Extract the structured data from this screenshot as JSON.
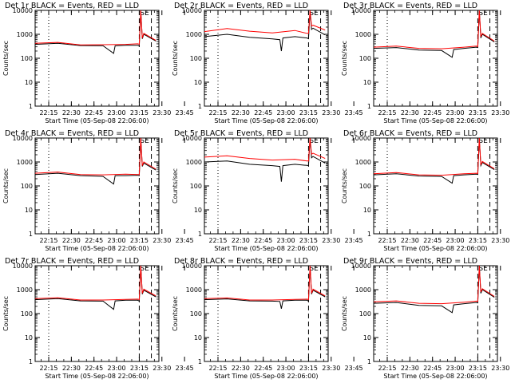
{
  "chart_data": [
    {
      "type": "line",
      "title": "Det 1r BLACK = Events, RED = LLD",
      "xlabel": "Start Time (05-Sep-08 22:06:00)",
      "ylabel": "Counts/sec",
      "yscale": "log",
      "ylim": [
        1,
        10000
      ],
      "xticks": [
        "22:15",
        "22:30",
        "22:45",
        "23:00",
        "23:15",
        "23:30",
        "23:45"
      ],
      "yticks": [
        "1",
        "10",
        "100",
        "1000",
        "10000"
      ],
      "annotation": "SE",
      "series": [
        {
          "name": "Events",
          "color": "#000000",
          "x": [
            0,
            15,
            30,
            45,
            52,
            53,
            60,
            68,
            69,
            70,
            71,
            72,
            80
          ],
          "y": [
            380,
            420,
            340,
            330,
            160,
            330,
            350,
            350,
            320,
            10000,
            650,
            1000,
            520
          ]
        },
        {
          "name": "LLD",
          "color": "#ff0000",
          "x": [
            0,
            15,
            30,
            45,
            60,
            68,
            69,
            70,
            71,
            72,
            80
          ],
          "y": [
            420,
            460,
            360,
            370,
            380,
            400,
            380,
            10000,
            700,
            1100,
            560
          ]
        }
      ]
    },
    {
      "type": "line",
      "title": "Det 2r BLACK = Events, RED = LLD",
      "xlabel": "Start Time (05-Sep-08 22:06:00)",
      "ylabel": "Counts/sec",
      "yscale": "log",
      "ylim": [
        1,
        10000
      ],
      "xticks": [
        "22:15",
        "22:30",
        "22:45",
        "23:00",
        "23:15",
        "23:30",
        "23:45"
      ],
      "yticks": [
        "1",
        "10",
        "100",
        "1000",
        "10000"
      ],
      "annotation": "SE",
      "series": [
        {
          "name": "Events",
          "color": "#000000",
          "x": [
            0,
            15,
            30,
            45,
            50,
            51,
            52,
            60,
            68,
            69,
            70,
            71,
            72,
            80
          ],
          "y": [
            800,
            1000,
            750,
            640,
            600,
            200,
            700,
            800,
            700,
            650,
            10000,
            1600,
            1800,
            950
          ]
        },
        {
          "name": "LLD",
          "color": "#ff0000",
          "x": [
            0,
            15,
            30,
            45,
            60,
            68,
            69,
            70,
            71,
            72,
            80
          ],
          "y": [
            1300,
            1750,
            1350,
            1150,
            1450,
            1100,
            1100,
            10000,
            2200,
            2400,
            1500
          ]
        }
      ]
    },
    {
      "type": "line",
      "title": "Det 3r BLACK = Events, RED = LLD",
      "xlabel": "Start Time (05-Sep-08 22:06:00)",
      "ylabel": "Counts/sec",
      "yscale": "log",
      "ylim": [
        1,
        10000
      ],
      "xticks": [
        "22:15",
        "22:30",
        "22:45",
        "23:00",
        "23:15",
        "23:30",
        "23:45"
      ],
      "yticks": [
        "1",
        "10",
        "100",
        "1000",
        "10000"
      ],
      "annotation": "SE",
      "series": [
        {
          "name": "Events",
          "color": "#000000",
          "x": [
            0,
            15,
            30,
            45,
            52,
            53,
            60,
            68,
            69,
            70,
            71,
            72,
            80
          ],
          "y": [
            260,
            280,
            220,
            210,
            110,
            230,
            260,
            290,
            280,
            10000,
            700,
            1000,
            480
          ]
        },
        {
          "name": "LLD",
          "color": "#ff0000",
          "x": [
            0,
            15,
            30,
            45,
            60,
            68,
            69,
            70,
            71,
            72,
            80
          ],
          "y": [
            290,
            320,
            260,
            250,
            290,
            320,
            310,
            10000,
            800,
            1100,
            520
          ]
        }
      ]
    },
    {
      "type": "line",
      "title": "Det 4r BLACK = Events, RED = LLD",
      "xlabel": "Start Time (05-Sep-08 22:06:00)",
      "ylabel": "Counts/sec",
      "yscale": "log",
      "ylim": [
        1,
        10000
      ],
      "xticks": [
        "22:15",
        "22:30",
        "22:45",
        "23:00",
        "23:15",
        "23:30",
        "23:45"
      ],
      "yticks": [
        "1",
        "10",
        "100",
        "1000",
        "10000"
      ],
      "annotation": "SE",
      "series": [
        {
          "name": "Events",
          "color": "#000000",
          "x": [
            0,
            15,
            30,
            45,
            52,
            53,
            60,
            68,
            69,
            70,
            71,
            72,
            80
          ],
          "y": [
            300,
            340,
            270,
            250,
            120,
            270,
            270,
            280,
            270,
            10000,
            650,
            900,
            460
          ]
        },
        {
          "name": "LLD",
          "color": "#ff0000",
          "x": [
            0,
            15,
            30,
            45,
            60,
            68,
            69,
            70,
            71,
            72,
            80
          ],
          "y": [
            340,
            380,
            300,
            290,
            310,
            300,
            300,
            10000,
            700,
            1000,
            500
          ]
        }
      ]
    },
    {
      "type": "line",
      "title": "Det 5r BLACK = Events, RED = LLD",
      "xlabel": "Start Time (05-Sep-08 22:06:00)",
      "ylabel": "Counts/sec",
      "yscale": "log",
      "ylim": [
        1,
        10000
      ],
      "xticks": [
        "22:15",
        "22:30",
        "22:45",
        "23:00",
        "23:15",
        "23:30",
        "23:45"
      ],
      "yticks": [
        "1",
        "10",
        "100",
        "1000",
        "10000"
      ],
      "annotation": "SE",
      "series": [
        {
          "name": "Events",
          "color": "#000000",
          "x": [
            0,
            15,
            30,
            45,
            50,
            51,
            52,
            60,
            68,
            69,
            70,
            71,
            72,
            80
          ],
          "y": [
            1000,
            1100,
            800,
            700,
            650,
            150,
            700,
            800,
            720,
            700,
            10000,
            1500,
            1700,
            900
          ]
        },
        {
          "name": "LLD",
          "color": "#ff0000",
          "x": [
            0,
            15,
            30,
            45,
            60,
            68,
            69,
            70,
            71,
            72,
            80
          ],
          "y": [
            1600,
            1800,
            1400,
            1200,
            1300,
            1100,
            1100,
            10000,
            2100,
            2300,
            1400
          ]
        }
      ]
    },
    {
      "type": "line",
      "title": "Det 6r BLACK = Events, RED = LLD",
      "xlabel": "Start Time (05-Sep-08 22:06:00)",
      "ylabel": "Counts/sec",
      "yscale": "log",
      "ylim": [
        1,
        10000
      ],
      "xticks": [
        "22:15",
        "22:30",
        "22:45",
        "23:00",
        "23:15",
        "23:30",
        "23:45"
      ],
      "yticks": [
        "1",
        "10",
        "100",
        "1000",
        "10000"
      ],
      "annotation": "SE",
      "series": [
        {
          "name": "Events",
          "color": "#000000",
          "x": [
            0,
            15,
            30,
            45,
            52,
            53,
            60,
            68,
            69,
            70,
            71,
            72,
            80
          ],
          "y": [
            290,
            320,
            260,
            250,
            130,
            270,
            290,
            310,
            300,
            10000,
            700,
            950,
            480
          ]
        },
        {
          "name": "LLD",
          "color": "#ff0000",
          "x": [
            0,
            15,
            30,
            45,
            60,
            68,
            69,
            70,
            71,
            72,
            80
          ],
          "y": [
            320,
            360,
            290,
            280,
            320,
            340,
            330,
            10000,
            760,
            1050,
            520
          ]
        }
      ]
    },
    {
      "type": "line",
      "title": "Det 7r BLACK = Events, RED = LLD",
      "xlabel": "Start Time (05-Sep-08 22:06:00)",
      "ylabel": "Counts/sec",
      "yscale": "log",
      "ylim": [
        1,
        10000
      ],
      "xticks": [
        "22:15",
        "22:30",
        "22:45",
        "23:00",
        "23:15",
        "23:30",
        "23:45"
      ],
      "yticks": [
        "1",
        "10",
        "100",
        "1000",
        "10000"
      ],
      "annotation": "SE",
      "series": [
        {
          "name": "Events",
          "color": "#000000",
          "x": [
            0,
            15,
            30,
            45,
            52,
            53,
            60,
            68,
            69,
            70,
            71,
            72,
            80
          ],
          "y": [
            380,
            420,
            340,
            330,
            150,
            340,
            360,
            360,
            330,
            10000,
            650,
            950,
            500
          ]
        },
        {
          "name": "LLD",
          "color": "#ff0000",
          "x": [
            0,
            15,
            30,
            45,
            60,
            68,
            69,
            70,
            71,
            72,
            80
          ],
          "y": [
            420,
            460,
            370,
            370,
            390,
            400,
            380,
            10000,
            700,
            1050,
            550
          ]
        }
      ]
    },
    {
      "type": "line",
      "title": "Det 8r BLACK = Events, RED = LLD",
      "xlabel": "Start Time (05-Sep-08 22:06:00)",
      "ylabel": "Counts/sec",
      "yscale": "log",
      "ylim": [
        1,
        10000
      ],
      "xticks": [
        "22:15",
        "22:30",
        "22:45",
        "23:00",
        "23:15",
        "23:30",
        "23:45"
      ],
      "yticks": [
        "1",
        "10",
        "100",
        "1000",
        "10000"
      ],
      "annotation": "SE",
      "series": [
        {
          "name": "Events",
          "color": "#000000",
          "x": [
            0,
            15,
            30,
            45,
            50,
            51,
            52,
            60,
            68,
            69,
            70,
            71,
            72,
            80
          ],
          "y": [
            380,
            410,
            340,
            330,
            320,
            160,
            340,
            360,
            360,
            330,
            10000,
            650,
            950,
            500
          ]
        },
        {
          "name": "LLD",
          "color": "#ff0000",
          "x": [
            0,
            15,
            30,
            45,
            60,
            68,
            69,
            70,
            71,
            72,
            80
          ],
          "y": [
            420,
            450,
            370,
            370,
            390,
            400,
            380,
            10000,
            700,
            1050,
            550
          ]
        }
      ]
    },
    {
      "type": "line",
      "title": "Det 9r BLACK = Events, RED = LLD",
      "xlabel": "Start Time (05-Sep-08 22:06:00)",
      "ylabel": "Counts/sec",
      "yscale": "log",
      "ylim": [
        1,
        10000
      ],
      "xticks": [
        "22:15",
        "22:30",
        "22:45",
        "23:00",
        "23:15",
        "23:30",
        "23:45"
      ],
      "yticks": [
        "1",
        "10",
        "100",
        "1000",
        "10000"
      ],
      "annotation": "SE",
      "series": [
        {
          "name": "Events",
          "color": "#000000",
          "x": [
            0,
            15,
            30,
            45,
            52,
            53,
            60,
            68,
            69,
            70,
            71,
            72,
            80
          ],
          "y": [
            270,
            290,
            220,
            210,
            110,
            230,
            260,
            290,
            280,
            10000,
            700,
            1000,
            480
          ]
        },
        {
          "name": "LLD",
          "color": "#ff0000",
          "x": [
            0,
            15,
            30,
            45,
            60,
            68,
            69,
            70,
            71,
            72,
            80
          ],
          "y": [
            310,
            340,
            270,
            260,
            300,
            330,
            320,
            10000,
            800,
            1100,
            520
          ]
        }
      ]
    }
  ],
  "vertical_markers": {
    "dotted": [
      9
    ],
    "dashed": [
      69,
      77
    ]
  }
}
